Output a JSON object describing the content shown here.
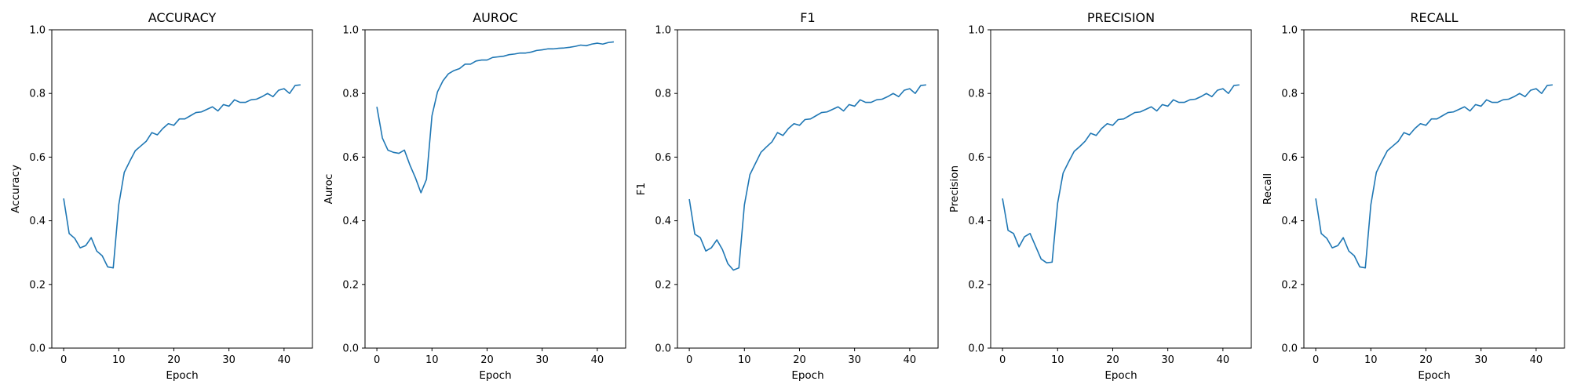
{
  "chart_data": [
    {
      "type": "line",
      "title": "ACCURACY",
      "xlabel": "Epoch",
      "ylabel": "Accuracy",
      "xlim": [
        -2.15,
        45.15
      ],
      "ylim": [
        0.0,
        1.0
      ],
      "xticks": [
        0,
        10,
        20,
        30,
        40
      ],
      "yticks": [
        0.0,
        0.2,
        0.4,
        0.6,
        0.8,
        1.0
      ],
      "grid": false,
      "series": [
        {
          "x": [
            0,
            1,
            2,
            3,
            4,
            5,
            6,
            7,
            8,
            9,
            10,
            11,
            12,
            13,
            14,
            15,
            16,
            17,
            18,
            19,
            20,
            21,
            22,
            23,
            24,
            25,
            26,
            27,
            28,
            29,
            30,
            31,
            32,
            33,
            34,
            35,
            36,
            37,
            38,
            39,
            40,
            41,
            42,
            43
          ],
          "values": [
            0.47,
            0.36,
            0.345,
            0.315,
            0.322,
            0.347,
            0.305,
            0.29,
            0.255,
            0.252,
            0.45,
            0.552,
            0.587,
            0.62,
            0.635,
            0.65,
            0.677,
            0.67,
            0.69,
            0.705,
            0.7,
            0.72,
            0.72,
            0.73,
            0.74,
            0.742,
            0.75,
            0.758,
            0.745,
            0.765,
            0.76,
            0.78,
            0.772,
            0.772,
            0.78,
            0.782,
            0.79,
            0.8,
            0.79,
            0.81,
            0.815,
            0.8,
            0.825,
            0.827
          ]
        }
      ]
    },
    {
      "type": "line",
      "title": "AUROC",
      "xlabel": "Epoch",
      "ylabel": "Auroc",
      "xlim": [
        -2.15,
        45.15
      ],
      "ylim": [
        0.0,
        1.0
      ],
      "xticks": [
        0,
        10,
        20,
        30,
        40
      ],
      "yticks": [
        0.0,
        0.2,
        0.4,
        0.6,
        0.8,
        1.0
      ],
      "grid": false,
      "series": [
        {
          "x": [
            0,
            1,
            2,
            3,
            4,
            5,
            6,
            7,
            8,
            9,
            10,
            11,
            12,
            13,
            14,
            15,
            16,
            17,
            18,
            19,
            20,
            21,
            22,
            23,
            24,
            25,
            26,
            27,
            28,
            29,
            30,
            31,
            32,
            33,
            34,
            35,
            36,
            37,
            38,
            39,
            40,
            41,
            42,
            43
          ],
          "values": [
            0.758,
            0.66,
            0.622,
            0.615,
            0.612,
            0.622,
            0.575,
            0.535,
            0.488,
            0.53,
            0.73,
            0.805,
            0.84,
            0.862,
            0.872,
            0.878,
            0.892,
            0.892,
            0.902,
            0.905,
            0.905,
            0.913,
            0.915,
            0.917,
            0.922,
            0.924,
            0.927,
            0.927,
            0.93,
            0.935,
            0.937,
            0.94,
            0.94,
            0.942,
            0.943,
            0.945,
            0.948,
            0.952,
            0.95,
            0.955,
            0.958,
            0.955,
            0.96,
            0.962
          ]
        }
      ]
    },
    {
      "type": "line",
      "title": "F1",
      "xlabel": "Epoch",
      "ylabel": "F1",
      "xlim": [
        -2.15,
        45.15
      ],
      "ylim": [
        0.0,
        1.0
      ],
      "xticks": [
        0,
        10,
        20,
        30,
        40
      ],
      "yticks": [
        0.0,
        0.2,
        0.4,
        0.6,
        0.8,
        1.0
      ],
      "grid": false,
      "series": [
        {
          "x": [
            0,
            1,
            2,
            3,
            4,
            5,
            6,
            7,
            8,
            9,
            10,
            11,
            12,
            13,
            14,
            15,
            16,
            17,
            18,
            19,
            20,
            21,
            22,
            23,
            24,
            25,
            26,
            27,
            28,
            29,
            30,
            31,
            32,
            33,
            34,
            35,
            36,
            37,
            38,
            39,
            40,
            41,
            42,
            43
          ],
          "values": [
            0.468,
            0.358,
            0.347,
            0.305,
            0.315,
            0.34,
            0.31,
            0.265,
            0.245,
            0.252,
            0.45,
            0.545,
            0.58,
            0.615,
            0.632,
            0.648,
            0.677,
            0.668,
            0.69,
            0.705,
            0.7,
            0.718,
            0.72,
            0.73,
            0.74,
            0.742,
            0.75,
            0.758,
            0.745,
            0.765,
            0.76,
            0.78,
            0.772,
            0.772,
            0.78,
            0.782,
            0.79,
            0.8,
            0.79,
            0.81,
            0.815,
            0.8,
            0.825,
            0.827
          ]
        }
      ]
    },
    {
      "type": "line",
      "title": "PRECISION",
      "xlabel": "Epoch",
      "ylabel": "Precision",
      "xlim": [
        -2.15,
        45.15
      ],
      "ylim": [
        0.0,
        1.0
      ],
      "xticks": [
        0,
        10,
        20,
        30,
        40
      ],
      "yticks": [
        0.0,
        0.2,
        0.4,
        0.6,
        0.8,
        1.0
      ],
      "grid": false,
      "series": [
        {
          "x": [
            0,
            1,
            2,
            3,
            4,
            5,
            6,
            7,
            8,
            9,
            10,
            11,
            12,
            13,
            14,
            15,
            16,
            17,
            18,
            19,
            20,
            21,
            22,
            23,
            24,
            25,
            26,
            27,
            28,
            29,
            30,
            31,
            32,
            33,
            34,
            35,
            36,
            37,
            38,
            39,
            40,
            41,
            42,
            43
          ],
          "values": [
            0.47,
            0.37,
            0.36,
            0.318,
            0.35,
            0.36,
            0.32,
            0.28,
            0.268,
            0.27,
            0.455,
            0.55,
            0.585,
            0.618,
            0.633,
            0.65,
            0.675,
            0.668,
            0.69,
            0.705,
            0.7,
            0.718,
            0.72,
            0.73,
            0.74,
            0.742,
            0.75,
            0.758,
            0.745,
            0.765,
            0.76,
            0.78,
            0.772,
            0.772,
            0.78,
            0.782,
            0.79,
            0.8,
            0.79,
            0.81,
            0.815,
            0.8,
            0.825,
            0.827
          ]
        }
      ]
    },
    {
      "type": "line",
      "title": "RECALL",
      "xlabel": "Epoch",
      "ylabel": "Recall",
      "xlim": [
        -2.15,
        45.15
      ],
      "ylim": [
        0.0,
        1.0
      ],
      "xticks": [
        0,
        10,
        20,
        30,
        40
      ],
      "yticks": [
        0.0,
        0.2,
        0.4,
        0.6,
        0.8,
        1.0
      ],
      "grid": false,
      "series": [
        {
          "x": [
            0,
            1,
            2,
            3,
            4,
            5,
            6,
            7,
            8,
            9,
            10,
            11,
            12,
            13,
            14,
            15,
            16,
            17,
            18,
            19,
            20,
            21,
            22,
            23,
            24,
            25,
            26,
            27,
            28,
            29,
            30,
            31,
            32,
            33,
            34,
            35,
            36,
            37,
            38,
            39,
            40,
            41,
            42,
            43
          ],
          "values": [
            0.47,
            0.36,
            0.345,
            0.315,
            0.322,
            0.347,
            0.305,
            0.29,
            0.255,
            0.252,
            0.45,
            0.552,
            0.587,
            0.62,
            0.635,
            0.65,
            0.677,
            0.67,
            0.69,
            0.705,
            0.7,
            0.72,
            0.72,
            0.73,
            0.74,
            0.742,
            0.75,
            0.758,
            0.745,
            0.765,
            0.76,
            0.78,
            0.772,
            0.772,
            0.78,
            0.782,
            0.79,
            0.8,
            0.79,
            0.81,
            0.815,
            0.8,
            0.825,
            0.827
          ]
        }
      ]
    }
  ],
  "colors": {
    "line": "#1f77b4",
    "axis": "#000000",
    "background": "#ffffff"
  }
}
